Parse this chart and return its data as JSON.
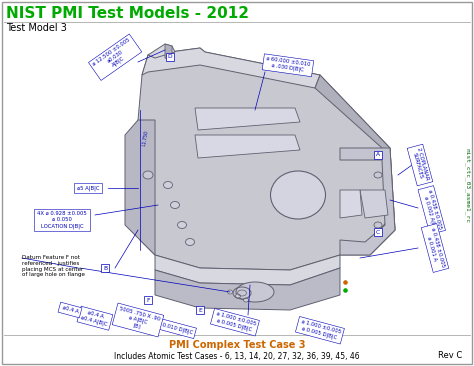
{
  "title": "NIST PMI Test Models - 2012",
  "subtitle": "Test Model 3",
  "title_color": "#00aa00",
  "title_fontsize": 11,
  "subtitle_fontsize": 7,
  "border_color": "#999999",
  "bg_color": "#ffffff",
  "part_color_main": "#c8c8d0",
  "part_color_top": "#d8d8e0",
  "part_color_right": "#b0b0bc",
  "part_color_dark": "#a8a8b8",
  "part_edge_color": "#606070",
  "annotation_color": "#0000bb",
  "ann_fs": 3.8,
  "bottom_title": "PMI Complex Test Case 3",
  "bottom_text": "Includes Atomic Test Cases - 6, 13, 14, 20, 27, 32, 36, 39, 45, 46",
  "bottom_title_color": "#cc6600",
  "bottom_text_color": "#000000",
  "rev_text": "Rev C",
  "watermark_text": "nist_ctc_03_asme1_rc",
  "note_text": "Datum Feature F not\nreferenced - justifies\nplacing MCS at center\nof large hole on flange"
}
